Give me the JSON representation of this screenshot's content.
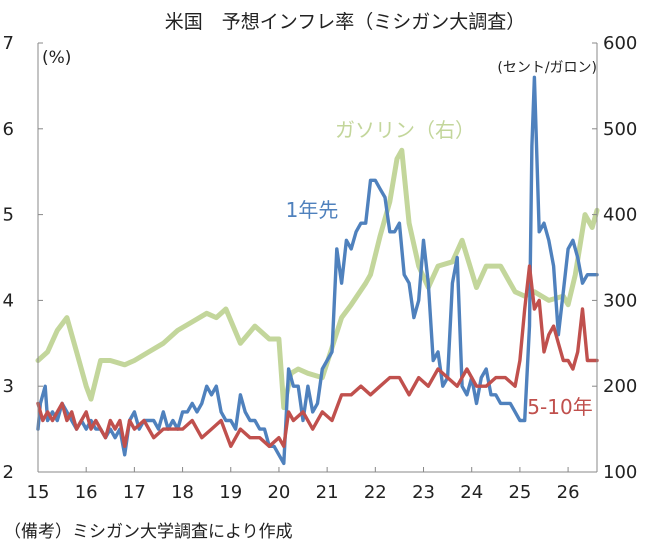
{
  "chart_data": {
    "type": "line",
    "title": "米国　予想インフレ率（ミシガン大調査）",
    "left_axis": {
      "unit_label": "(%)",
      "range": [
        2,
        7
      ],
      "ticks": [
        "2",
        "3",
        "4",
        "5",
        "6",
        "7"
      ]
    },
    "right_axis": {
      "unit_label": "(セント/ガロン)",
      "range": [
        100,
        600
      ],
      "ticks": [
        "100",
        "200",
        "300",
        "400",
        "500",
        "600"
      ]
    },
    "x_axis": {
      "range": [
        15,
        26.6
      ],
      "ticks": [
        "15",
        "16",
        "17",
        "18",
        "19",
        "20",
        "21",
        "22",
        "23",
        "24",
        "25",
        "26"
      ]
    },
    "note": "（備考）ミシガン大学調査により作成",
    "grid": false,
    "series": [
      {
        "name": "ガソリン（右）",
        "axis": "right",
        "color": "#c3d69b",
        "x": [
          15.0,
          15.2,
          15.4,
          15.6,
          15.8,
          16.0,
          16.1,
          16.3,
          16.5,
          16.8,
          17.0,
          17.3,
          17.6,
          17.9,
          18.2,
          18.5,
          18.7,
          18.9,
          19.2,
          19.5,
          19.8,
          20.0,
          20.1,
          20.25,
          20.4,
          20.6,
          20.9,
          21.1,
          21.3,
          21.5,
          21.8,
          21.9,
          22.1,
          22.3,
          22.45,
          22.55,
          22.7,
          22.9,
          23.1,
          23.3,
          23.6,
          23.8,
          24.1,
          24.3,
          24.6,
          24.9,
          25.1,
          25.3,
          25.6,
          25.9,
          26.0,
          26.15,
          26.35,
          26.5,
          26.6
        ],
        "values": [
          230,
          240,
          265,
          280,
          240,
          200,
          185,
          230,
          230,
          225,
          230,
          240,
          250,
          265,
          275,
          285,
          280,
          290,
          250,
          270,
          255,
          255,
          175,
          215,
          220,
          215,
          210,
          245,
          280,
          295,
          320,
          330,
          375,
          415,
          465,
          475,
          390,
          340,
          315,
          340,
          345,
          370,
          315,
          340,
          340,
          310,
          305,
          310,
          300,
          305,
          295,
          330,
          400,
          385,
          405
        ],
        "legend_position": "upper-middle"
      },
      {
        "name": "1年先",
        "axis": "left",
        "color": "#4f81bd",
        "x": [
          15.0,
          15.05,
          15.15,
          15.2,
          15.3,
          15.4,
          15.5,
          15.6,
          15.7,
          15.8,
          15.9,
          16.0,
          16.1,
          16.2,
          16.3,
          16.4,
          16.5,
          16.6,
          16.7,
          16.8,
          16.9,
          17.0,
          17.1,
          17.2,
          17.3,
          17.4,
          17.5,
          17.6,
          17.7,
          17.8,
          17.9,
          18.0,
          18.1,
          18.2,
          18.3,
          18.4,
          18.5,
          18.6,
          18.7,
          18.8,
          18.9,
          19.0,
          19.1,
          19.2,
          19.3,
          19.4,
          19.5,
          19.6,
          19.7,
          19.8,
          19.9,
          20.0,
          20.1,
          20.2,
          20.3,
          20.4,
          20.5,
          20.6,
          20.7,
          20.8,
          20.9,
          21.0,
          21.1,
          21.2,
          21.3,
          21.4,
          21.5,
          21.6,
          21.7,
          21.8,
          21.9,
          22.0,
          22.1,
          22.2,
          22.3,
          22.4,
          22.5,
          22.6,
          22.7,
          22.8,
          22.9,
          23.0,
          23.1,
          23.2,
          23.3,
          23.4,
          23.5,
          23.6,
          23.7,
          23.8,
          23.9,
          24.0,
          24.1,
          24.2,
          24.3,
          24.4,
          24.5,
          24.6,
          24.7,
          24.8,
          24.9,
          25.0,
          25.1,
          25.2,
          25.25,
          25.3,
          25.4,
          25.5,
          25.6,
          25.7,
          25.8,
          25.9,
          26.0,
          26.1,
          26.2,
          26.3,
          26.4,
          26.5,
          26.6
        ],
        "values": [
          2.5,
          2.8,
          3.0,
          2.6,
          2.7,
          2.6,
          2.8,
          2.7,
          2.6,
          2.5,
          2.6,
          2.5,
          2.6,
          2.5,
          2.5,
          2.4,
          2.5,
          2.4,
          2.5,
          2.2,
          2.6,
          2.7,
          2.5,
          2.6,
          2.6,
          2.6,
          2.5,
          2.7,
          2.5,
          2.6,
          2.5,
          2.7,
          2.7,
          2.8,
          2.7,
          2.8,
          3.0,
          2.9,
          3.0,
          2.7,
          2.6,
          2.6,
          2.5,
          2.9,
          2.7,
          2.6,
          2.6,
          2.5,
          2.5,
          2.3,
          2.3,
          2.2,
          2.1,
          3.2,
          3.0,
          3.0,
          2.6,
          3.0,
          2.7,
          2.8,
          3.2,
          3.3,
          3.4,
          4.6,
          4.2,
          4.7,
          4.6,
          4.8,
          4.9,
          4.9,
          5.4,
          5.4,
          5.3,
          5.2,
          4.8,
          4.8,
          4.9,
          4.3,
          4.2,
          3.8,
          4.0,
          4.7,
          4.2,
          3.3,
          3.4,
          3.0,
          3.1,
          4.2,
          4.5,
          3.0,
          2.9,
          3.1,
          2.8,
          3.1,
          3.2,
          2.9,
          2.9,
          2.8,
          2.8,
          2.8,
          2.7,
          2.6,
          2.6,
          3.7,
          5.8,
          6.6,
          4.8,
          4.9,
          4.7,
          4.4,
          3.6,
          4.1,
          4.6,
          4.7,
          4.5,
          4.2,
          4.3,
          4.3,
          4.3
        ],
        "legend_position": "middle-left"
      },
      {
        "name": "5-10年",
        "axis": "left",
        "color": "#c0504d",
        "x": [
          15.0,
          15.1,
          15.2,
          15.3,
          15.4,
          15.5,
          15.6,
          15.7,
          15.8,
          15.9,
          16.0,
          16.1,
          16.2,
          16.3,
          16.4,
          16.5,
          16.6,
          16.7,
          16.8,
          16.9,
          17.0,
          17.2,
          17.4,
          17.6,
          17.8,
          18.0,
          18.2,
          18.4,
          18.6,
          18.8,
          19.0,
          19.2,
          19.4,
          19.6,
          19.8,
          20.0,
          20.1,
          20.2,
          20.3,
          20.5,
          20.7,
          20.9,
          21.1,
          21.3,
          21.5,
          21.7,
          21.9,
          22.1,
          22.3,
          22.5,
          22.7,
          22.9,
          23.1,
          23.3,
          23.5,
          23.7,
          23.9,
          24.1,
          24.3,
          24.5,
          24.7,
          24.9,
          25.0,
          25.1,
          25.2,
          25.3,
          25.4,
          25.5,
          25.6,
          25.7,
          25.8,
          25.9,
          26.0,
          26.1,
          26.2,
          26.3,
          26.4,
          26.5,
          26.6
        ],
        "values": [
          2.8,
          2.6,
          2.7,
          2.6,
          2.7,
          2.8,
          2.6,
          2.7,
          2.5,
          2.6,
          2.7,
          2.5,
          2.6,
          2.5,
          2.4,
          2.6,
          2.5,
          2.6,
          2.3,
          2.6,
          2.5,
          2.6,
          2.4,
          2.5,
          2.5,
          2.5,
          2.6,
          2.4,
          2.5,
          2.6,
          2.3,
          2.5,
          2.4,
          2.4,
          2.3,
          2.4,
          2.3,
          2.7,
          2.6,
          2.7,
          2.5,
          2.7,
          2.6,
          2.9,
          2.9,
          3.0,
          2.9,
          3.0,
          3.1,
          3.1,
          2.9,
          3.1,
          3.0,
          3.2,
          3.1,
          3.0,
          3.2,
          3.0,
          3.0,
          3.1,
          3.1,
          3.0,
          3.3,
          3.9,
          4.4,
          3.9,
          4.0,
          3.4,
          3.6,
          3.7,
          3.5,
          3.3,
          3.3,
          3.2,
          3.4,
          3.9,
          3.3,
          3.3,
          3.3
        ],
        "legend_position": "lower-right"
      }
    ]
  }
}
